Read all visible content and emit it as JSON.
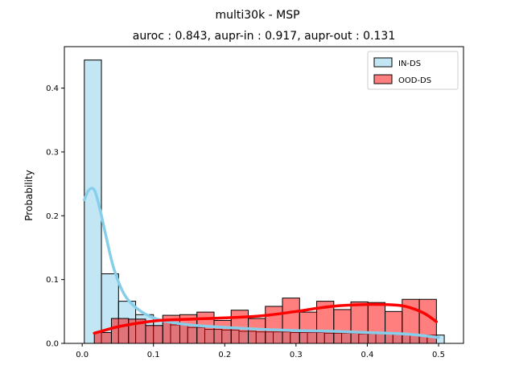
{
  "chart_data": {
    "type": "histogram",
    "title": "multi30k - MSP",
    "subtitle": "auroc : 0.843, aupr-in : 0.917, aupr-out : 0.131",
    "xlabel": "",
    "ylabel": "Probability",
    "xlim": [
      -0.025,
      0.535
    ],
    "ylim": [
      0,
      0.465
    ],
    "xticks": [
      0.0,
      0.1,
      0.2,
      0.3,
      0.4,
      0.5
    ],
    "xtick_labels": [
      "0.0",
      "0.1",
      "0.2",
      "0.3",
      "0.4",
      "0.5"
    ],
    "yticks": [
      0.0,
      0.1,
      0.2,
      0.3,
      0.4
    ],
    "ytick_labels": [
      "0.0",
      "0.1",
      "0.2",
      "0.3",
      "0.4"
    ],
    "grid": false,
    "legend_position": "top-right",
    "series": [
      {
        "name": "IN-DS",
        "color": "#87ceeb",
        "bin_edges": [
          0.003,
          0.027,
          0.051,
          0.075,
          0.1,
          0.124,
          0.148,
          0.172,
          0.196,
          0.22,
          0.244,
          0.268,
          0.292,
          0.316,
          0.34,
          0.364,
          0.388,
          0.412,
          0.436,
          0.46,
          0.484,
          0.508
        ],
        "values": [
          0.444,
          0.109,
          0.066,
          0.045,
          0.036,
          0.029,
          0.025,
          0.022,
          0.021,
          0.019,
          0.018,
          0.018,
          0.017,
          0.017,
          0.016,
          0.016,
          0.015,
          0.015,
          0.014,
          0.013,
          0.013,
          0.008
        ],
        "kde_x": [
          0.003,
          0.008,
          0.013,
          0.018,
          0.025,
          0.035,
          0.045,
          0.06,
          0.08,
          0.1,
          0.12,
          0.15,
          0.2,
          0.25,
          0.3,
          0.35,
          0.4,
          0.45,
          0.48,
          0.5
        ],
        "kde_y": [
          0.225,
          0.238,
          0.243,
          0.238,
          0.21,
          0.16,
          0.115,
          0.075,
          0.052,
          0.04,
          0.034,
          0.029,
          0.025,
          0.022,
          0.02,
          0.019,
          0.017,
          0.015,
          0.012,
          0.009
        ]
      },
      {
        "name": "OOD-DS",
        "color": "#ff0000",
        "bin_edges": [
          0.017,
          0.041,
          0.065,
          0.089,
          0.113,
          0.137,
          0.161,
          0.185,
          0.209,
          0.233,
          0.257,
          0.281,
          0.305,
          0.329,
          0.353,
          0.377,
          0.401,
          0.425,
          0.449,
          0.473,
          0.497
        ],
        "values": [
          0.017,
          0.039,
          0.038,
          0.028,
          0.044,
          0.045,
          0.049,
          0.036,
          0.052,
          0.039,
          0.058,
          0.071,
          0.049,
          0.066,
          0.053,
          0.065,
          0.064,
          0.05,
          0.069,
          0.069
        ],
        "kde_x": [
          0.017,
          0.03,
          0.05,
          0.08,
          0.11,
          0.15,
          0.2,
          0.25,
          0.3,
          0.35,
          0.4,
          0.44,
          0.46,
          0.48,
          0.497
        ],
        "kde_y": [
          0.016,
          0.02,
          0.026,
          0.032,
          0.036,
          0.038,
          0.04,
          0.043,
          0.05,
          0.058,
          0.061,
          0.06,
          0.056,
          0.047,
          0.034
        ]
      }
    ]
  }
}
